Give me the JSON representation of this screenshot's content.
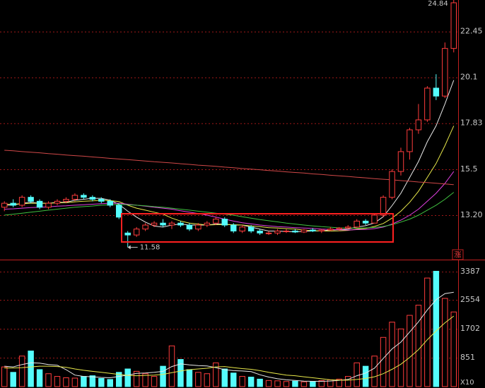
{
  "chart_data": {
    "type": "candlestick",
    "categories": [
      null,
      null,
      null,
      null,
      null,
      null,
      null,
      null,
      null,
      null,
      null,
      null,
      null,
      null,
      null,
      null,
      null,
      null,
      null,
      null,
      null,
      null,
      null,
      null,
      null,
      null,
      null,
      null,
      null,
      null,
      null,
      null,
      null,
      null,
      null,
      null,
      null,
      null,
      null,
      null,
      null,
      null,
      null,
      null,
      null,
      null,
      null,
      null,
      null,
      null,
      null,
      null
    ],
    "open": [
      13.6,
      13.8,
      13.7,
      14.1,
      13.9,
      13.6,
      13.8,
      13.9,
      14.0,
      14.2,
      14.1,
      14.0,
      13.9,
      13.7,
      12.3,
      12.2,
      12.5,
      12.7,
      12.8,
      12.7,
      12.8,
      12.7,
      12.5,
      12.7,
      12.8,
      13.0,
      12.7,
      12.4,
      12.6,
      12.4,
      12.3,
      12.3,
      12.4,
      12.4,
      12.35,
      12.45,
      12.4,
      12.45,
      12.5,
      12.55,
      12.6,
      12.9,
      12.8,
      13.2,
      14.1,
      15.4,
      16.4,
      17.5,
      18.0,
      19.6,
      19.2,
      21.6
    ],
    "high": [
      13.9,
      14.0,
      14.2,
      14.2,
      14.0,
      13.9,
      14.0,
      14.1,
      14.3,
      14.3,
      14.2,
      14.1,
      14.0,
      13.8,
      12.4,
      12.6,
      12.8,
      12.9,
      13.0,
      12.9,
      12.9,
      12.8,
      12.8,
      12.9,
      13.1,
      13.1,
      12.8,
      12.7,
      12.7,
      12.5,
      12.4,
      12.5,
      12.5,
      12.5,
      12.5,
      12.55,
      12.5,
      12.6,
      12.6,
      12.7,
      13.0,
      13.0,
      13.3,
      14.2,
      15.5,
      16.6,
      17.6,
      18.8,
      19.7,
      20.3,
      21.9,
      24.84
    ],
    "low": [
      13.4,
      13.6,
      13.6,
      13.8,
      13.5,
      13.5,
      13.7,
      13.8,
      13.9,
      14.0,
      13.9,
      13.8,
      13.6,
      13.0,
      11.58,
      12.1,
      12.4,
      12.6,
      12.6,
      12.5,
      12.6,
      12.4,
      12.4,
      12.6,
      12.7,
      12.6,
      12.3,
      12.3,
      12.3,
      12.2,
      12.2,
      12.2,
      12.3,
      12.3,
      12.3,
      12.35,
      12.3,
      12.4,
      12.4,
      12.5,
      12.55,
      12.7,
      12.8,
      13.1,
      14.0,
      15.2,
      16.0,
      17.3,
      17.9,
      19.0,
      19.1,
      21.4
    ],
    "close": [
      13.8,
      13.7,
      14.1,
      13.9,
      13.6,
      13.8,
      13.9,
      14.0,
      14.2,
      14.1,
      14.0,
      13.9,
      13.7,
      13.1,
      12.2,
      12.5,
      12.7,
      12.8,
      12.7,
      12.8,
      12.7,
      12.5,
      12.7,
      12.8,
      13.0,
      12.7,
      12.4,
      12.6,
      12.4,
      12.3,
      12.3,
      12.4,
      12.4,
      12.35,
      12.45,
      12.4,
      12.45,
      12.5,
      12.55,
      12.6,
      12.9,
      12.8,
      13.2,
      14.1,
      15.4,
      16.4,
      17.5,
      18.0,
      19.6,
      19.2,
      21.6,
      23.9
    ],
    "volume": [
      580,
      420,
      900,
      1050,
      500,
      380,
      300,
      260,
      250,
      300,
      320,
      240,
      210,
      420,
      520,
      450,
      380,
      300,
      600,
      1200,
      800,
      500,
      420,
      380,
      700,
      520,
      400,
      300,
      280,
      220,
      180,
      170,
      150,
      160,
      140,
      150,
      180,
      200,
      220,
      300,
      700,
      600,
      900,
      1450,
      1900,
      1700,
      2100,
      2400,
      3200,
      3400,
      2600,
      2200
    ],
    "ma_lines": [
      {
        "color": "#e8e8e8",
        "values": [
          13.7,
          13.7,
          13.8,
          13.85,
          13.8,
          13.8,
          13.85,
          13.85,
          13.95,
          14.0,
          14.05,
          14.05,
          13.95,
          13.75,
          13.4,
          13.1,
          12.85,
          12.65,
          12.6,
          12.7,
          12.75,
          12.7,
          12.7,
          12.7,
          12.75,
          12.75,
          12.7,
          12.7,
          12.6,
          12.5,
          12.4,
          12.4,
          12.37,
          12.36,
          12.38,
          12.4,
          12.41,
          12.45,
          12.47,
          12.5,
          12.6,
          12.67,
          12.81,
          13.12,
          13.68,
          14.3,
          15.1,
          15.9,
          16.9,
          17.7,
          18.8,
          20.0
        ]
      },
      {
        "color": "#e8e84a",
        "values": [
          13.75,
          13.75,
          13.78,
          13.8,
          13.8,
          13.8,
          13.82,
          13.83,
          13.87,
          13.9,
          13.92,
          13.95,
          13.93,
          13.88,
          13.7,
          13.55,
          13.45,
          13.35,
          13.25,
          13.05,
          12.9,
          12.8,
          12.75,
          12.7,
          12.72,
          12.73,
          12.72,
          12.7,
          12.66,
          12.62,
          12.57,
          12.55,
          12.52,
          12.5,
          12.45,
          12.42,
          12.4,
          12.4,
          12.41,
          12.43,
          12.5,
          12.53,
          12.63,
          12.78,
          13.05,
          13.4,
          13.85,
          14.4,
          15.1,
          15.8,
          16.7,
          17.7
        ]
      },
      {
        "color": "#e040e0",
        "values": [
          13.5,
          13.52,
          13.55,
          13.58,
          13.6,
          13.62,
          13.65,
          13.67,
          13.7,
          13.72,
          13.75,
          13.78,
          13.8,
          13.8,
          13.75,
          13.7,
          13.65,
          13.6,
          13.55,
          13.5,
          13.42,
          13.35,
          13.28,
          13.2,
          13.1,
          13.0,
          12.9,
          12.82,
          12.76,
          12.7,
          12.66,
          12.62,
          12.6,
          12.57,
          12.55,
          12.53,
          12.5,
          12.48,
          12.46,
          12.45,
          12.47,
          12.48,
          12.52,
          12.6,
          12.75,
          12.95,
          13.2,
          13.5,
          13.9,
          14.3,
          14.8,
          15.4
        ]
      },
      {
        "color": "#40c040",
        "values": [
          13.2,
          13.25,
          13.3,
          13.35,
          13.4,
          13.45,
          13.5,
          13.55,
          13.6,
          13.63,
          13.66,
          13.7,
          13.72,
          13.74,
          13.72,
          13.7,
          13.67,
          13.63,
          13.6,
          13.55,
          13.5,
          13.45,
          13.4,
          13.35,
          13.3,
          13.25,
          13.2,
          13.12,
          13.05,
          12.98,
          12.92,
          12.86,
          12.8,
          12.75,
          12.7,
          12.66,
          12.62,
          12.59,
          12.56,
          12.55,
          12.55,
          12.56,
          12.58,
          12.63,
          12.72,
          12.85,
          13.0,
          13.2,
          13.45,
          13.7,
          14.0,
          14.35
        ]
      },
      {
        "color": "#d04848",
        "values": [
          16.47,
          16.44,
          16.4,
          16.37,
          16.34,
          16.3,
          16.27,
          16.23,
          16.2,
          16.17,
          16.13,
          16.1,
          16.06,
          16.03,
          16.0,
          15.96,
          15.93,
          15.89,
          15.86,
          15.83,
          15.79,
          15.76,
          15.72,
          15.69,
          15.66,
          15.62,
          15.59,
          15.55,
          15.52,
          15.49,
          15.45,
          15.42,
          15.38,
          15.35,
          15.32,
          15.28,
          15.25,
          15.21,
          15.18,
          15.15,
          15.11,
          15.08,
          15.04,
          15.01,
          14.98,
          14.94,
          14.91,
          14.87,
          14.84,
          14.81,
          14.77,
          14.74
        ]
      }
    ],
    "volume_ma_lines": [
      {
        "color": "#e8e8e8",
        "values": [
          600,
          580,
          650,
          700,
          690,
          650,
          630,
          500,
          340,
          300,
          290,
          270,
          260,
          300,
          340,
          390,
          400,
          420,
          450,
          590,
          670,
          640,
          620,
          610,
          560,
          500,
          470,
          460,
          440,
          350,
          280,
          230,
          200,
          180,
          160,
          155,
          155,
          165,
          180,
          210,
          320,
          400,
          540,
          830,
          1110,
          1310,
          1610,
          1910,
          2260,
          2560,
          2740,
          2780
        ]
      },
      {
        "color": "#e8e84a",
        "values": [
          550,
          550,
          560,
          580,
          600,
          600,
          590,
          570,
          520,
          480,
          450,
          420,
          390,
          360,
          330,
          320,
          330,
          340,
          360,
          410,
          460,
          500,
          520,
          540,
          580,
          590,
          560,
          530,
          510,
          470,
          420,
          380,
          340,
          320,
          290,
          260,
          230,
          200,
          190,
          190,
          210,
          240,
          290,
          380,
          510,
          660,
          860,
          1090,
          1380,
          1640,
          1880,
          2080
        ]
      }
    ],
    "up_color": "#ff3c3c",
    "down_color": "#54fcfc",
    "grid": true,
    "grid_color": "#a01818",
    "ylim": [
      10.96,
      24.04
    ],
    "yticks": [
      {
        "value": 22.45,
        "label": "22.45"
      },
      {
        "value": 20.14,
        "label": "20.1"
      },
      {
        "value": 17.83,
        "label": "17.83"
      },
      {
        "value": 15.51,
        "label": "15.5"
      },
      {
        "value": 13.2,
        "label": "13.20"
      }
    ],
    "volume_ylim": [
      0,
      3660
    ],
    "volume_yticks": [
      3387,
      2554,
      1702,
      851
    ],
    "volume_unit": "X10",
    "high_label": 24.84,
    "low_label": 11.58,
    "badge": "涨"
  }
}
